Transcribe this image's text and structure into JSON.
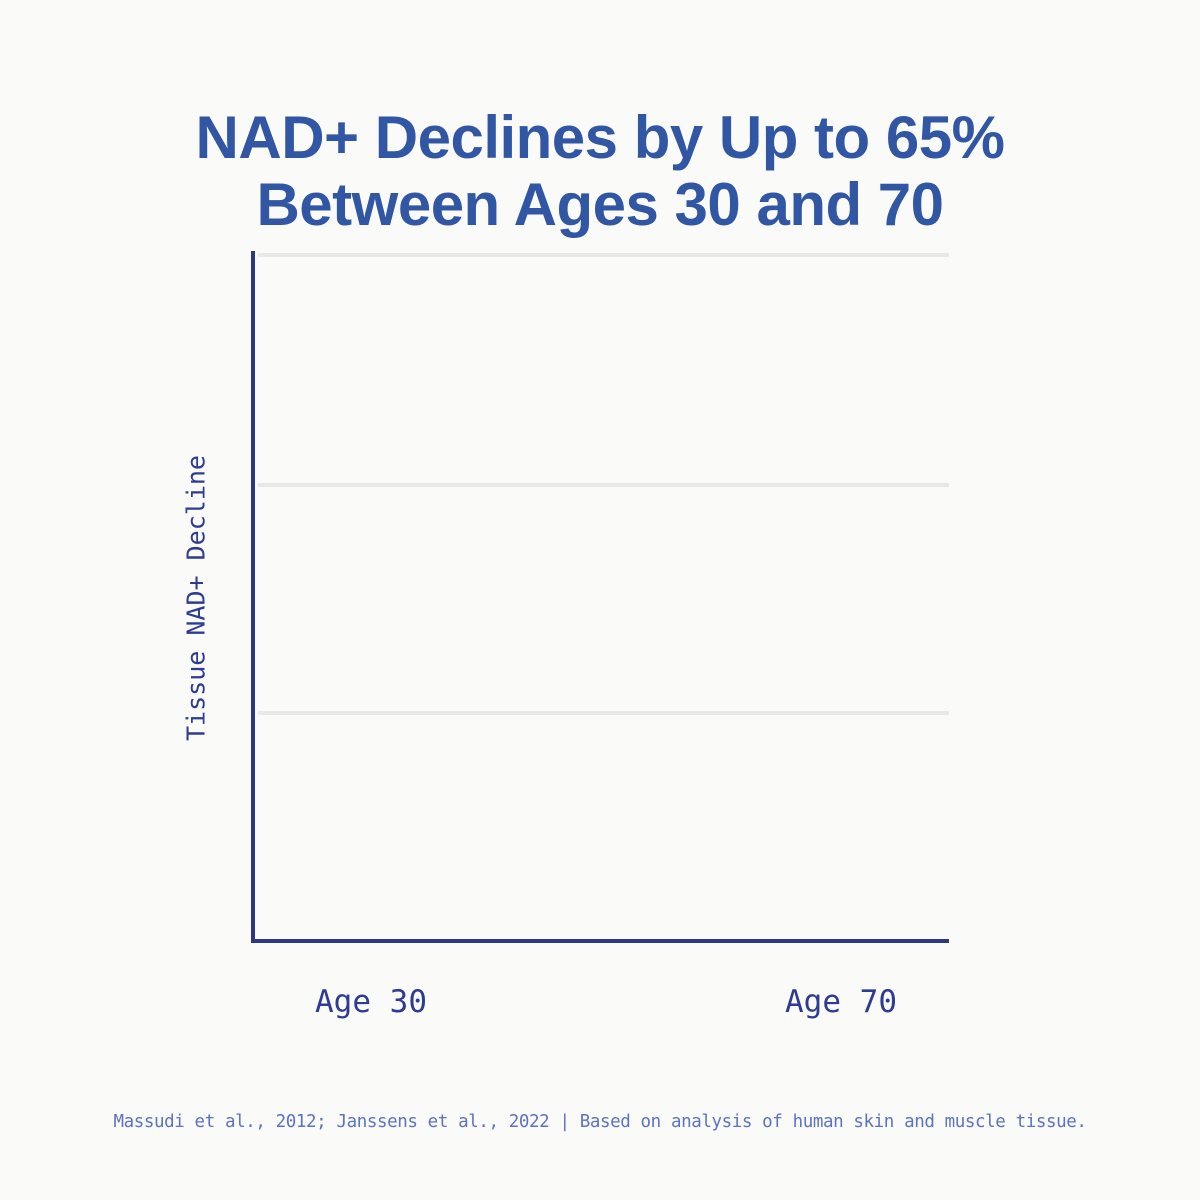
{
  "title": {
    "lines": [
      "NAD+ Declines by Up to 65%",
      "Between Ages 30 and 70"
    ],
    "color": "#3156A4"
  },
  "chart": {
    "ylabel": "Tissue NAD+ Decline",
    "x_ticks": [
      {
        "label": "Age 30"
      },
      {
        "label": "Age 70"
      }
    ],
    "axis_color": "#2C3787",
    "gridline_color": "#E8E8E8",
    "tick_label_color": "#2D3C90"
  },
  "footer": {
    "text": "Massudi et al., 2012; Janssens et al., 2022 | Based on analysis of human skin and muscle tissue.",
    "color": "#5C73C3"
  },
  "chart_data": {
    "type": "line",
    "title": "NAD+ Declines by Up to 65% Between Ages 30 and 70",
    "xlabel": "",
    "ylabel": "Tissue NAD+ Decline",
    "x_tick_labels": [
      "Age 30",
      "Age 70"
    ],
    "y_tick_labels": [],
    "series": [],
    "layout": {
      "grid": true,
      "horizontal_gridlines": 3,
      "legend": "none",
      "plot_area_empty": true
    },
    "source": "Massudi et al., 2012; Janssens et al., 2022 | Based on analysis of human skin and muscle tissue."
  }
}
